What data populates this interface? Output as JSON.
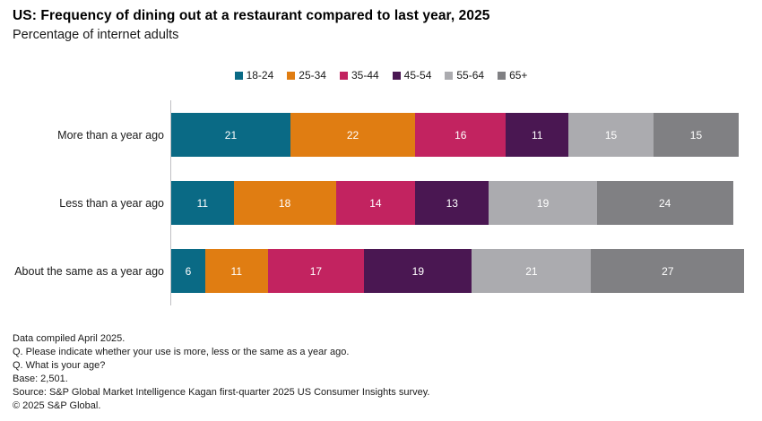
{
  "header": {
    "title": "US: Frequency of dining out at a restaurant compared to last year, 2025",
    "subtitle": "Percentage of internet adults"
  },
  "chart_data": {
    "type": "bar",
    "stacked": true,
    "orientation": "horizontal",
    "values_unit": "percent of internet adults",
    "legend_position": "top-center",
    "categories": [
      "More than a year ago",
      "Less than a year ago",
      "About the same as a year ago"
    ],
    "series": [
      {
        "name": "18-24",
        "color": "#0a6a85",
        "values": [
          21,
          11,
          6
        ]
      },
      {
        "name": "25-34",
        "color": "#e07d12",
        "values": [
          22,
          18,
          11
        ]
      },
      {
        "name": "35-44",
        "color": "#c22360",
        "values": [
          16,
          14,
          17
        ]
      },
      {
        "name": "45-54",
        "color": "#4a1752",
        "values": [
          11,
          13,
          19
        ]
      },
      {
        "name": "55-64",
        "color": "#ababaf",
        "values": [
          15,
          19,
          21
        ]
      },
      {
        "name": "65+",
        "color": "#808083",
        "values": [
          15,
          24,
          27
        ]
      }
    ],
    "axis_line_color": "#bfbfc3",
    "value_labels": "inside, white"
  },
  "footnotes": {
    "lines": [
      "Data compiled April 2025.",
      "Q. Please indicate whether your use is more, less or the same as a year ago.",
      "Q. What is your age?",
      "Base: 2,501.",
      "Source: S&P Global Market Intelligence Kagan first-quarter 2025 US Consumer Insights survey.",
      "© 2025 S&P Global."
    ]
  }
}
